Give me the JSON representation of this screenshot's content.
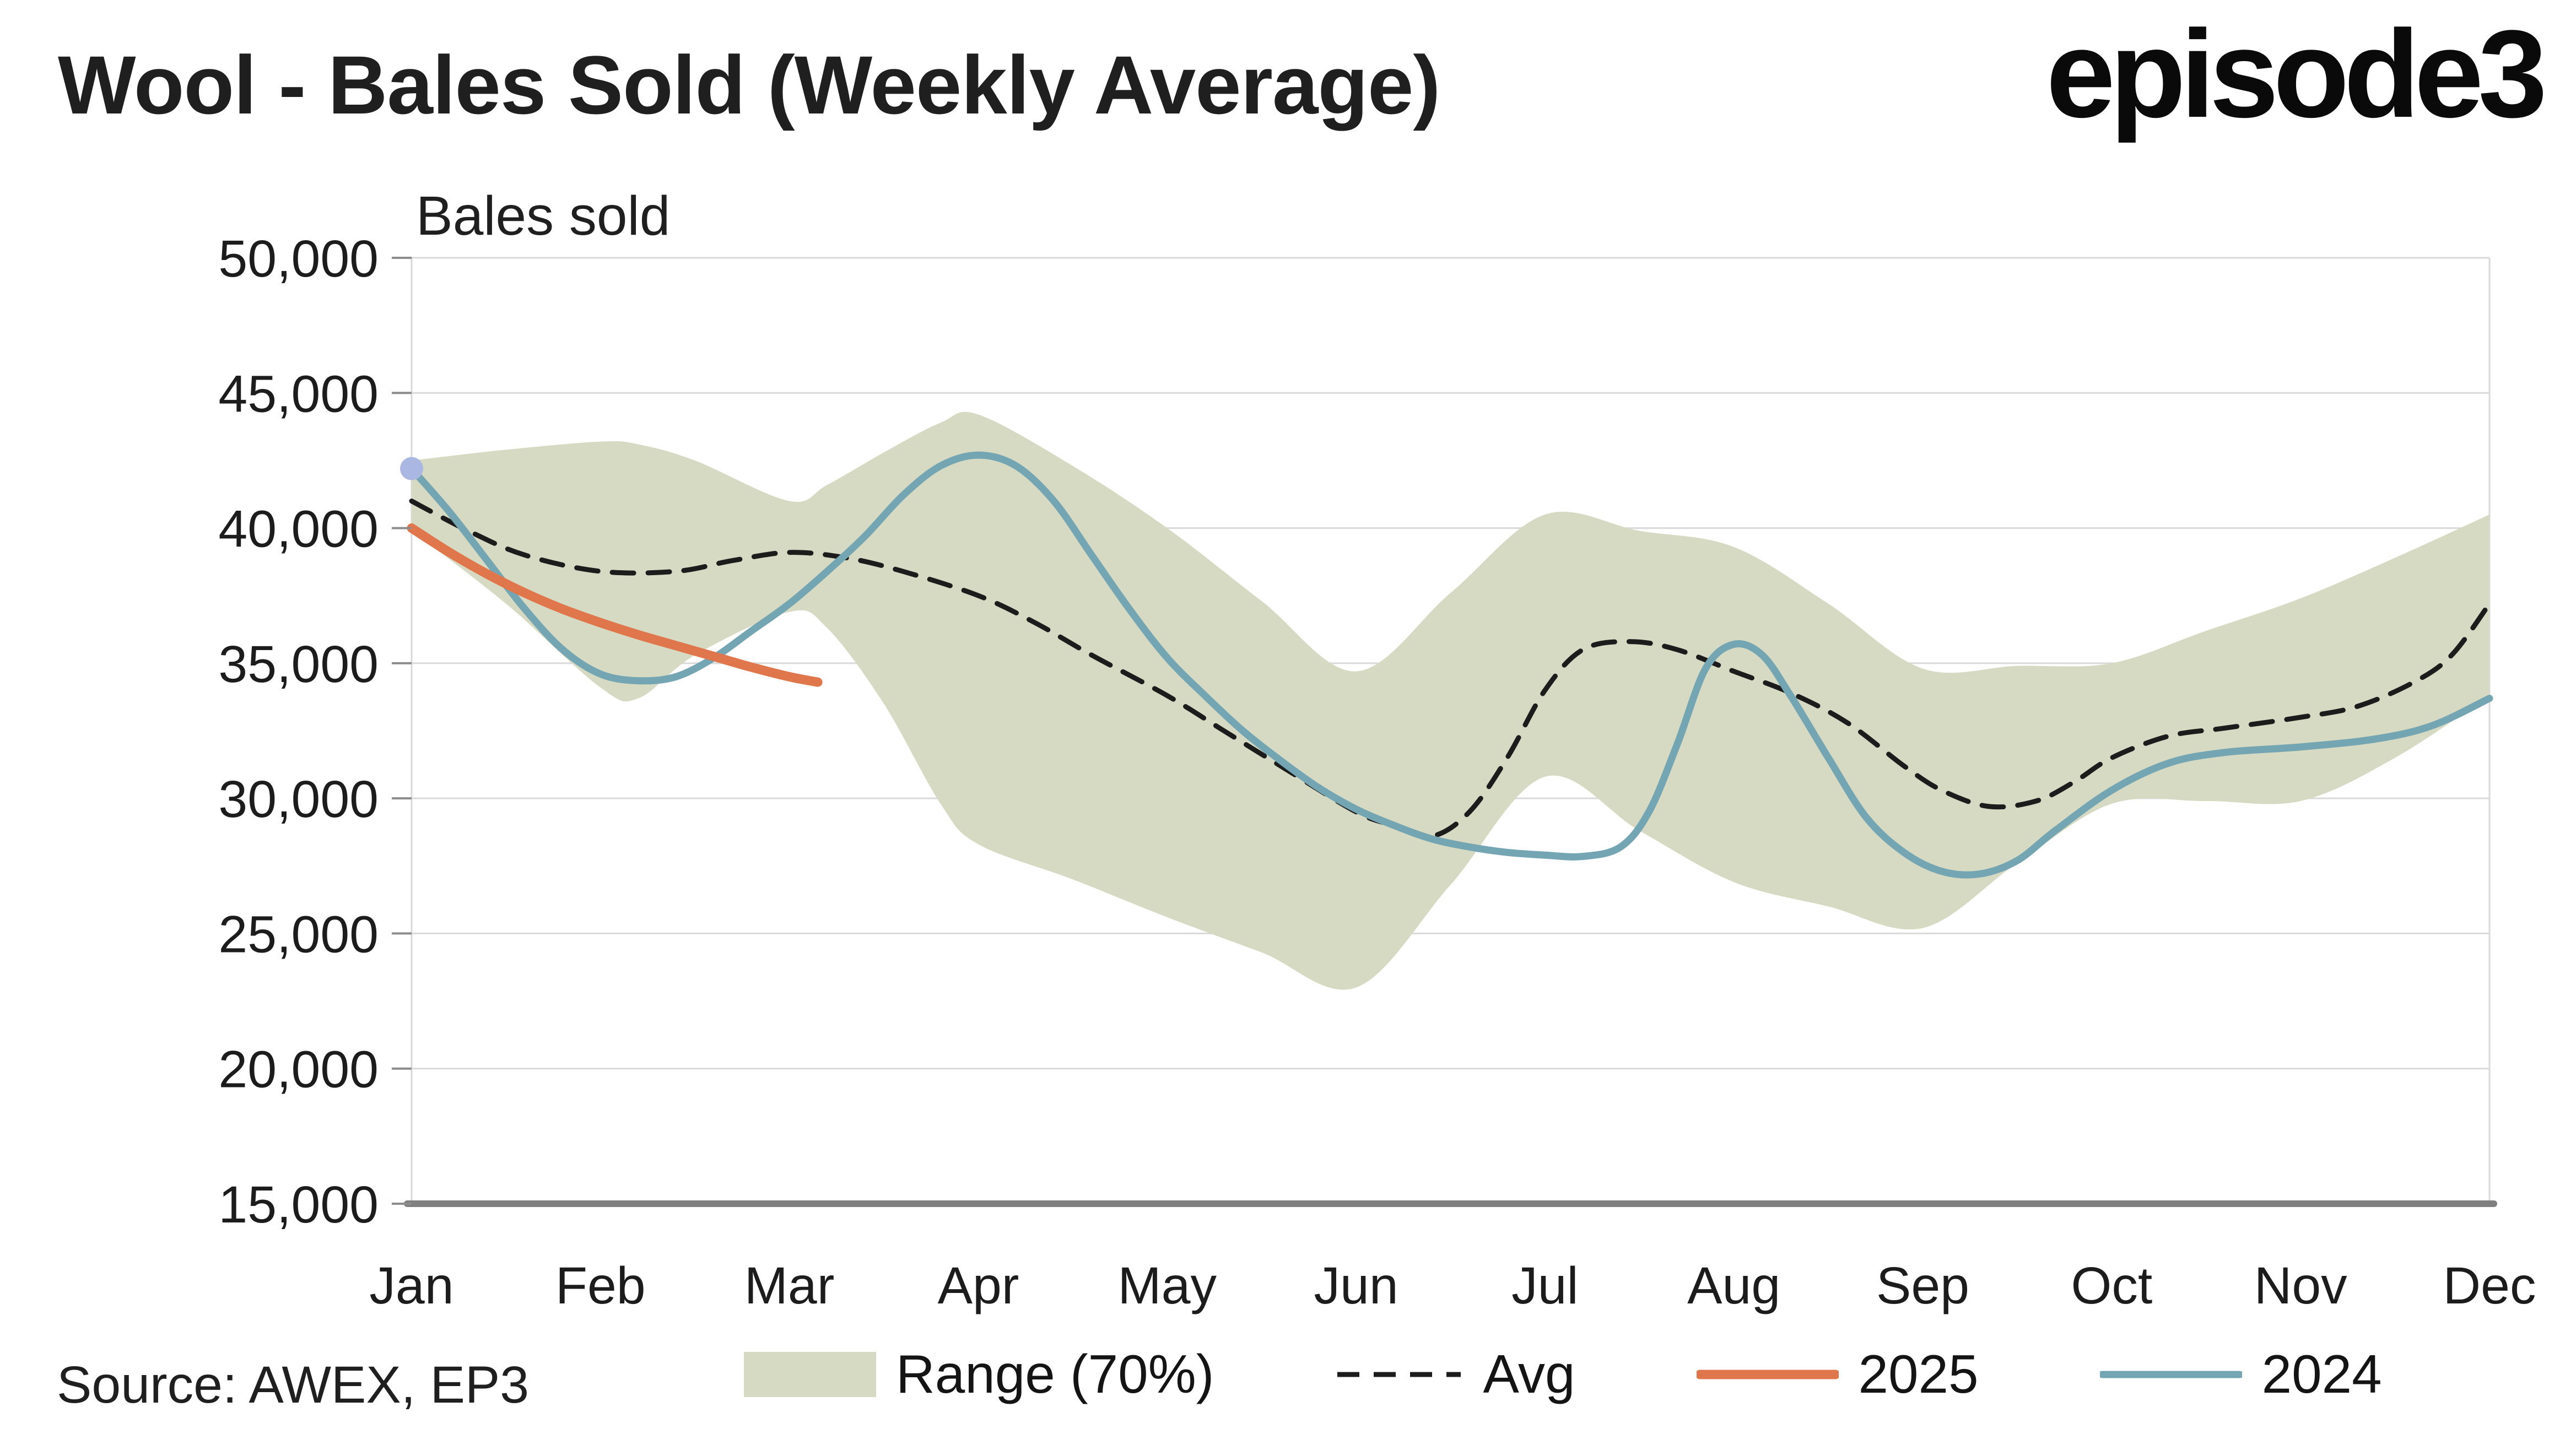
{
  "header": {
    "title": "Wool - Bales Sold (Weekly Average)",
    "logo": "episode3"
  },
  "footer": {
    "source": "Source: AWEX, EP3"
  },
  "chart_data": {
    "type": "line",
    "title": "Wool - Bales Sold (Weekly Average)",
    "ylabel": "Bales sold",
    "xlabel": "",
    "ylim": [
      15000,
      50000
    ],
    "ytick_step": 5000,
    "yticks": [
      {
        "value": 15000,
        "label": "15,000"
      },
      {
        "value": 20000,
        "label": "20,000"
      },
      {
        "value": 25000,
        "label": "25,000"
      },
      {
        "value": 30000,
        "label": "30,000"
      },
      {
        "value": 35000,
        "label": "35,000"
      },
      {
        "value": 40000,
        "label": "40,000"
      },
      {
        "value": 45000,
        "label": "45,000"
      },
      {
        "value": 50000,
        "label": "50,000"
      }
    ],
    "categories": [
      "Jan",
      "Feb",
      "Mar",
      "Apr",
      "May",
      "Jun",
      "Jul",
      "Aug",
      "Sep",
      "Oct",
      "Nov",
      "Dec"
    ],
    "x_range": [
      0,
      11
    ],
    "grid": "horizontal",
    "legend_position": "bottom",
    "colors": {
      "grid": "#d9d9d9",
      "axis": "#7f7f7f",
      "tick": "#8c8c8c",
      "text": "#1c1c1c"
    },
    "series": [
      {
        "name": "Range (70%)",
        "kind": "band",
        "color": "#d7dac2",
        "x": [
          0,
          0.5,
          1.0,
          1.2,
          1.5,
          2.0,
          2.2,
          2.5,
          2.8,
          3.0,
          3.5,
          4.0,
          4.5,
          5.0,
          5.5,
          6.0,
          6.5,
          7.0,
          7.5,
          8.0,
          8.5,
          9.0,
          9.5,
          10.0,
          10.5,
          11.0
        ],
        "upper": [
          42500,
          42900,
          43200,
          43100,
          42500,
          41000,
          41600,
          42800,
          43900,
          44200,
          42300,
          40000,
          37300,
          34700,
          37600,
          40500,
          39900,
          39300,
          37200,
          34800,
          34900,
          35000,
          36200,
          37400,
          38900,
          40500
        ],
        "lower": [
          39900,
          37200,
          34100,
          33700,
          35300,
          36900,
          36300,
          33500,
          29800,
          28300,
          27000,
          25600,
          24300,
          23000,
          26800,
          30800,
          28800,
          26900,
          26000,
          25200,
          27600,
          29800,
          29900,
          29900,
          31500,
          33800
        ]
      },
      {
        "name": "Avg",
        "kind": "line",
        "color": "#1c1c1c",
        "width": 9,
        "dash": [
          39,
          26
        ],
        "x": [
          0,
          0.3,
          0.6,
          1.0,
          1.4,
          1.7,
          2.0,
          2.3,
          2.6,
          3.0,
          3.3,
          3.6,
          4.0,
          4.3,
          4.6,
          5.0,
          5.2,
          5.4,
          5.6,
          5.8,
          6.0,
          6.2,
          6.45,
          6.7,
          7.0,
          7.3,
          7.6,
          7.9,
          8.1,
          8.35,
          8.6,
          8.8,
          9.0,
          9.3,
          9.6,
          10.0,
          10.3,
          10.6,
          10.8,
          11.0
        ],
        "values": [
          41000,
          39900,
          39000,
          38400,
          38400,
          38800,
          39100,
          38900,
          38400,
          37500,
          36500,
          35300,
          33800,
          32500,
          31200,
          29500,
          29000,
          28600,
          29500,
          31500,
          34000,
          35500,
          35800,
          35500,
          34700,
          33900,
          32800,
          31200,
          30300,
          29700,
          29900,
          30600,
          31500,
          32300,
          32600,
          33000,
          33400,
          34300,
          35300,
          37200
        ]
      },
      {
        "name": "2025",
        "kind": "line",
        "color": "#e0764c",
        "width": 17,
        "x": [
          0,
          0.2,
          0.4,
          0.6,
          0.8,
          1.0,
          1.2,
          1.4,
          1.6,
          1.8,
          2.0,
          2.15
        ],
        "values": [
          40000,
          39100,
          38300,
          37600,
          37000,
          36500,
          36050,
          35650,
          35250,
          34850,
          34500,
          34300
        ]
      },
      {
        "name": "2024",
        "kind": "line",
        "color": "#74a5b3",
        "width": 13,
        "x": [
          0,
          0.2,
          0.4,
          0.6,
          0.8,
          1.0,
          1.2,
          1.4,
          1.6,
          1.8,
          2.0,
          2.2,
          2.4,
          2.6,
          2.8,
          3.0,
          3.2,
          3.4,
          3.6,
          3.8,
          4.0,
          4.2,
          4.4,
          4.6,
          4.8,
          5.0,
          5.2,
          5.4,
          5.6,
          5.8,
          6.0,
          6.2,
          6.4,
          6.55,
          6.7,
          6.85,
          7.0,
          7.15,
          7.3,
          7.5,
          7.7,
          7.9,
          8.1,
          8.3,
          8.5,
          8.7,
          9.0,
          9.3,
          9.6,
          10.0,
          10.4,
          10.7,
          11.0
        ],
        "values": [
          42200,
          40600,
          38800,
          37000,
          35500,
          34600,
          34350,
          34500,
          35200,
          36200,
          37200,
          38400,
          39700,
          41200,
          42300,
          42700,
          42300,
          41000,
          39000,
          37000,
          35200,
          33800,
          32500,
          31400,
          30400,
          29600,
          29000,
          28500,
          28200,
          28000,
          27900,
          27850,
          28200,
          29500,
          32000,
          34800,
          35700,
          35300,
          33800,
          31500,
          29300,
          28000,
          27300,
          27200,
          27700,
          28800,
          30300,
          31300,
          31700,
          31900,
          32200,
          32700,
          33700
        ],
        "marker_start": {
          "x": 0,
          "value": 42200,
          "color": "#a9b7e2",
          "radius": 21
        }
      }
    ],
    "source": "Source: AWEX, EP3"
  }
}
